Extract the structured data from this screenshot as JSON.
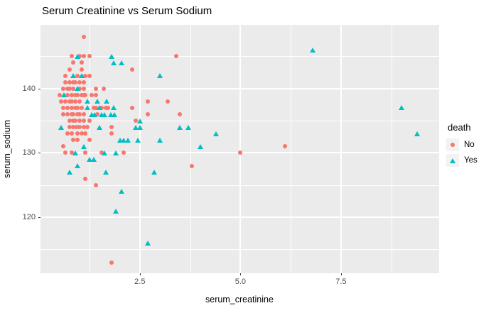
{
  "title": "Serum Creatinine vs Serum Sodium",
  "chart_data": {
    "type": "scatter",
    "title": "Serum Creatinine vs Serum Sodium",
    "xlabel": "serum_creatinine",
    "ylabel": "serum_sodium",
    "xlim": [
      0.03,
      9.94
    ],
    "ylim": [
      111.3,
      149.9
    ],
    "x_major_ticks": [
      2.5,
      5.0,
      7.5
    ],
    "x_tick_labels": [
      "2.5",
      "5.0",
      "7.5"
    ],
    "x_minor_ticks": [
      1.25,
      3.75,
      6.25,
      8.75
    ],
    "y_major_ticks": [
      120,
      130,
      140
    ],
    "y_tick_labels": [
      "120",
      "130",
      "140"
    ],
    "y_minor_ticks": [
      115,
      125,
      135,
      145
    ],
    "grid": true,
    "panel_background": "#EBEBEB",
    "gridline_color": "#FFFFFF",
    "axis_text_color": "#4D4D4D",
    "legend_position": "right",
    "legend_title": "death",
    "series": [
      {
        "name": "No",
        "marker": "circle",
        "color": "#F8766D",
        "points": [
          [
            1.1,
            148
          ],
          [
            0.8,
            145
          ],
          [
            1.0,
            145
          ],
          [
            1.1,
            145
          ],
          [
            1.25,
            145
          ],
          [
            3.4,
            145
          ],
          [
            0.85,
            144
          ],
          [
            1.05,
            144
          ],
          [
            0.75,
            143
          ],
          [
            1.05,
            143
          ],
          [
            2.3,
            143
          ],
          [
            0.65,
            142
          ],
          [
            0.95,
            142
          ],
          [
            1.15,
            142
          ],
          [
            1.25,
            142
          ],
          [
            0.65,
            141
          ],
          [
            0.75,
            141
          ],
          [
            0.85,
            141
          ],
          [
            0.9,
            141
          ],
          [
            1.0,
            141
          ],
          [
            1.1,
            141
          ],
          [
            0.6,
            140
          ],
          [
            0.7,
            140
          ],
          [
            0.75,
            140
          ],
          [
            0.85,
            140
          ],
          [
            1.0,
            140
          ],
          [
            1.1,
            140
          ],
          [
            1.4,
            140
          ],
          [
            1.6,
            140
          ],
          [
            0.5,
            139
          ],
          [
            0.7,
            139
          ],
          [
            0.8,
            139
          ],
          [
            0.9,
            139
          ],
          [
            0.95,
            139
          ],
          [
            1.05,
            139
          ],
          [
            1.1,
            139
          ],
          [
            1.15,
            139
          ],
          [
            1.3,
            139
          ],
          [
            1.4,
            139
          ],
          [
            0.55,
            138
          ],
          [
            0.65,
            138
          ],
          [
            0.75,
            138
          ],
          [
            0.8,
            138
          ],
          [
            0.9,
            138
          ],
          [
            1.0,
            138
          ],
          [
            2.7,
            138
          ],
          [
            3.2,
            138
          ],
          [
            0.6,
            137
          ],
          [
            0.7,
            137
          ],
          [
            0.8,
            137
          ],
          [
            0.9,
            137
          ],
          [
            0.95,
            137
          ],
          [
            1.05,
            137
          ],
          [
            1.35,
            137
          ],
          [
            1.4,
            137
          ],
          [
            1.55,
            137
          ],
          [
            1.65,
            137
          ],
          [
            1.7,
            137
          ],
          [
            2.3,
            137
          ],
          [
            0.6,
            136
          ],
          [
            0.7,
            136
          ],
          [
            0.8,
            136
          ],
          [
            0.85,
            136
          ],
          [
            0.95,
            136
          ],
          [
            1.0,
            136
          ],
          [
            1.1,
            136
          ],
          [
            1.45,
            136
          ],
          [
            2.7,
            136
          ],
          [
            3.5,
            136
          ],
          [
            0.75,
            135
          ],
          [
            0.85,
            135
          ],
          [
            0.9,
            135
          ],
          [
            1.0,
            135
          ],
          [
            1.1,
            135
          ],
          [
            1.25,
            135
          ],
          [
            2.4,
            135
          ],
          [
            0.76,
            134
          ],
          [
            0.84,
            134
          ],
          [
            0.93,
            134
          ],
          [
            1.0,
            134
          ],
          [
            1.1,
            134
          ],
          [
            1.2,
            134
          ],
          [
            1.8,
            134
          ],
          [
            0.7,
            133
          ],
          [
            0.8,
            133
          ],
          [
            0.95,
            133
          ],
          [
            1.05,
            133
          ],
          [
            1.15,
            133
          ],
          [
            1.8,
            133
          ],
          [
            0.85,
            132
          ],
          [
            0.95,
            132
          ],
          [
            1.25,
            132
          ],
          [
            0.6,
            131
          ],
          [
            6.1,
            131
          ],
          [
            0.65,
            130
          ],
          [
            0.8,
            130
          ],
          [
            1.15,
            130
          ],
          [
            1.55,
            130
          ],
          [
            2.1,
            130
          ],
          [
            5.0,
            130
          ],
          [
            3.8,
            128
          ],
          [
            1.15,
            126
          ],
          [
            1.4,
            125
          ],
          [
            1.8,
            113
          ]
        ]
      },
      {
        "name": "Yes",
        "marker": "triangle",
        "color": "#00BFC4",
        "points": [
          [
            6.8,
            146
          ],
          [
            0.95,
            145
          ],
          [
            1.8,
            145
          ],
          [
            1.85,
            144
          ],
          [
            2.05,
            144
          ],
          [
            0.85,
            142
          ],
          [
            1.05,
            142
          ],
          [
            3.0,
            142
          ],
          [
            0.95,
            140
          ],
          [
            0.62,
            139
          ],
          [
            1.2,
            138
          ],
          [
            1.45,
            138
          ],
          [
            1.67,
            138
          ],
          [
            1.2,
            137
          ],
          [
            1.5,
            137
          ],
          [
            1.85,
            137
          ],
          [
            9.0,
            137
          ],
          [
            1.3,
            136
          ],
          [
            1.38,
            136
          ],
          [
            1.55,
            136
          ],
          [
            1.62,
            136
          ],
          [
            1.78,
            136
          ],
          [
            1.86,
            136
          ],
          [
            2.5,
            135
          ],
          [
            0.55,
            134
          ],
          [
            1.5,
            134
          ],
          [
            2.4,
            134
          ],
          [
            2.5,
            134
          ],
          [
            3.5,
            134
          ],
          [
            3.7,
            134
          ],
          [
            4.4,
            133
          ],
          [
            9.4,
            133
          ],
          [
            2.0,
            132
          ],
          [
            2.1,
            132
          ],
          [
            2.2,
            132
          ],
          [
            2.45,
            132
          ],
          [
            3.0,
            132
          ],
          [
            1.1,
            131
          ],
          [
            4.0,
            131
          ],
          [
            0.9,
            130
          ],
          [
            1.62,
            130
          ],
          [
            1.9,
            130
          ],
          [
            1.25,
            129
          ],
          [
            1.35,
            129
          ],
          [
            0.95,
            128
          ],
          [
            0.75,
            127
          ],
          [
            1.65,
            127
          ],
          [
            2.85,
            127
          ],
          [
            2.05,
            124
          ],
          [
            1.9,
            121
          ],
          [
            2.7,
            116
          ]
        ]
      }
    ]
  },
  "legend": {
    "title": "death",
    "items": [
      {
        "label": "No"
      },
      {
        "label": "Yes"
      }
    ]
  }
}
